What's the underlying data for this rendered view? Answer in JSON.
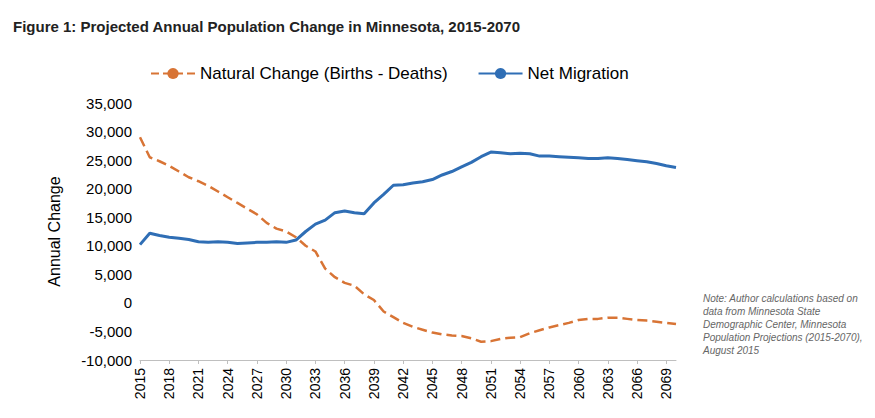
{
  "chart_data": {
    "type": "line",
    "title": "Figure 1: Projected Annual Population Change in Minnesota, 2015-2070",
    "y_label": "Annual Change",
    "note": "Note: Author calculations based on data from Minnesota State Demographic Center, Minnesota Population Projections (2015-2070), August 2015",
    "legend": "top",
    "grid": false,
    "x": [
      2015,
      2016,
      2017,
      2018,
      2019,
      2020,
      2021,
      2022,
      2023,
      2024,
      2025,
      2026,
      2027,
      2028,
      2029,
      2030,
      2031,
      2032,
      2033,
      2034,
      2035,
      2036,
      2037,
      2038,
      2039,
      2040,
      2041,
      2042,
      2043,
      2044,
      2045,
      2046,
      2047,
      2048,
      2049,
      2050,
      2051,
      2052,
      2053,
      2054,
      2055,
      2056,
      2057,
      2058,
      2059,
      2060,
      2061,
      2062,
      2063,
      2064,
      2065,
      2066,
      2067,
      2068,
      2069,
      2070
    ],
    "xlim": [
      2015,
      2070
    ],
    "xticks": [
      2015,
      2018,
      2021,
      2024,
      2027,
      2030,
      2033,
      2036,
      2039,
      2042,
      2045,
      2048,
      2051,
      2054,
      2057,
      2060,
      2063,
      2066,
      2069
    ],
    "ylim": [
      -10000,
      35000
    ],
    "yticks": [
      {
        "value": -10000,
        "label": "-10,000"
      },
      {
        "value": -5000,
        "label": "-5,000"
      },
      0,
      {
        "value": 5000,
        "label": "5,000"
      },
      {
        "value": 10000,
        "label": "10,000"
      },
      {
        "value": 15000,
        "label": "15,000"
      },
      {
        "value": 20000,
        "label": "20,000"
      },
      {
        "value": 25000,
        "label": "25,000"
      },
      {
        "value": 30000,
        "label": "30,000"
      },
      {
        "value": 35000,
        "label": "35,000"
      }
    ],
    "series": [
      {
        "name": "Natural Change (Births - Deaths)",
        "color": "#d87435",
        "line_style": "dashed",
        "values": [
          29000,
          25500,
          24800,
          24000,
          23000,
          22000,
          21300,
          20500,
          19500,
          18500,
          17500,
          16500,
          15500,
          14000,
          13000,
          12500,
          11500,
          10000,
          9000,
          6000,
          4500,
          3500,
          3000,
          1500,
          500,
          -1500,
          -2500,
          -3500,
          -4200,
          -4700,
          -5200,
          -5500,
          -5700,
          -5800,
          -6200,
          -6800,
          -6700,
          -6300,
          -6100,
          -6000,
          -5300,
          -4800,
          -4300,
          -3900,
          -3500,
          -3000,
          -2800,
          -2800,
          -2600,
          -2600,
          -2800,
          -3000,
          -3100,
          -3300,
          -3500,
          -3700
        ]
      },
      {
        "name": "Net Migration",
        "color": "#2f6eb5",
        "line_style": "solid",
        "values": [
          10200,
          12200,
          11800,
          11500,
          11300,
          11100,
          10700,
          10600,
          10700,
          10600,
          10400,
          10500,
          10600,
          10600,
          10700,
          10600,
          11000,
          12500,
          13800,
          14500,
          15800,
          16100,
          15800,
          15600,
          17500,
          19000,
          20600,
          20700,
          21000,
          21200,
          21600,
          22400,
          23000,
          23800,
          24600,
          25600,
          26400,
          26300,
          26100,
          26200,
          26100,
          25700,
          25700,
          25600,
          25500,
          25400,
          25300,
          25300,
          25400,
          25300,
          25100,
          24900,
          24700,
          24400,
          24000,
          23700
        ]
      }
    ]
  }
}
